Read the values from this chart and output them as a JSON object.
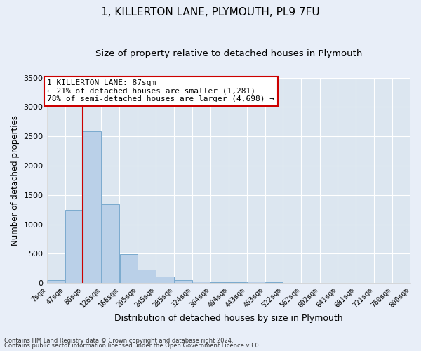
{
  "title": "1, KILLERTON LANE, PLYMOUTH, PL9 7FU",
  "subtitle": "Size of property relative to detached houses in Plymouth",
  "xlabel": "Distribution of detached houses by size in Plymouth",
  "ylabel": "Number of detached properties",
  "footer_line1": "Contains HM Land Registry data © Crown copyright and database right 2024.",
  "footer_line2": "Contains public sector information licensed under the Open Government Licence v3.0.",
  "bins": [
    7,
    47,
    86,
    126,
    166,
    205,
    245,
    285,
    324,
    364,
    404,
    443,
    483,
    522,
    562,
    602,
    641,
    681,
    721,
    760,
    800
  ],
  "bin_labels": [
    "7sqm",
    "47sqm",
    "86sqm",
    "126sqm",
    "166sqm",
    "205sqm",
    "245sqm",
    "285sqm",
    "324sqm",
    "364sqm",
    "404sqm",
    "443sqm",
    "483sqm",
    "522sqm",
    "562sqm",
    "602sqm",
    "641sqm",
    "681sqm",
    "721sqm",
    "760sqm",
    "800sqm"
  ],
  "values": [
    50,
    1250,
    2590,
    1340,
    490,
    230,
    115,
    50,
    25,
    20,
    10,
    25,
    20,
    0,
    0,
    0,
    0,
    0,
    0,
    0
  ],
  "bar_color": "#bad0e8",
  "bar_edge_color": "#7aaace",
  "vline_x": 86,
  "vline_color": "#cc0000",
  "annotation_text": "1 KILLERTON LANE: 87sqm\n← 21% of detached houses are smaller (1,281)\n78% of semi-detached houses are larger (4,698) →",
  "annotation_box_color": "#cc0000",
  "ylim": [
    0,
    3500
  ],
  "xlim": [
    7,
    800
  ],
  "bg_color": "#dce6f0",
  "fig_bg_color": "#e8eef8",
  "grid_color": "#ffffff",
  "title_fontsize": 11,
  "subtitle_fontsize": 9.5,
  "ylabel_fontsize": 8.5,
  "xlabel_fontsize": 9,
  "tick_fontsize": 7,
  "footer_fontsize": 6,
  "annot_fontsize": 8
}
